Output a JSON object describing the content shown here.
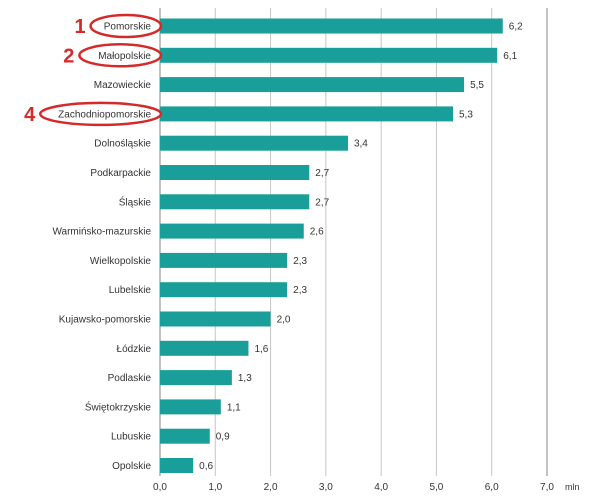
{
  "chart_data": {
    "type": "bar",
    "orientation": "horizontal",
    "title": "",
    "xlabel": "",
    "ylabel": "",
    "unit": "mln",
    "categories": [
      "Pomorskie",
      "Małopolskie",
      "Mazowieckie",
      "Zachodniopomorskie",
      "Dolnośląskie",
      "Podkarpackie",
      "Śląskie",
      "Warmińsko-mazurskie",
      "Wielkopolskie",
      "Lubelskie",
      "Kujawsko-pomorskie",
      "Łódzkie",
      "Podlaskie",
      "Świętokrzyskie",
      "Lubuskie",
      "Opolskie"
    ],
    "values": [
      6.2,
      6.1,
      5.5,
      5.3,
      3.4,
      2.7,
      2.7,
      2.6,
      2.3,
      2.3,
      2.0,
      1.6,
      1.3,
      1.1,
      0.9,
      0.6
    ],
    "value_labels": [
      "6,2",
      "6,1",
      "5,5",
      "5,3",
      "3,4",
      "2,7",
      "2,7",
      "2,6",
      "2,3",
      "2,3",
      "2,0",
      "1,6",
      "1,3",
      "1,1",
      "0,9",
      "0,6"
    ],
    "xticks": [
      0,
      1,
      2,
      3,
      4,
      5,
      6,
      7
    ],
    "xtick_labels": [
      "0,0",
      "1,0",
      "2,0",
      "3,0",
      "4,0",
      "5,0",
      "6,0",
      "7,0"
    ],
    "xlim": [
      0,
      7
    ],
    "grid": true,
    "legend": "none",
    "bar_color": "#1a9e9a",
    "annotations": [
      {
        "rank": "1",
        "category": "Pomorskie",
        "color": "#d42a2a"
      },
      {
        "rank": "2",
        "category": "Małopolskie",
        "color": "#d42a2a"
      },
      {
        "rank": "4",
        "category": "Zachodniopomorskie",
        "color": "#d42a2a"
      }
    ]
  }
}
